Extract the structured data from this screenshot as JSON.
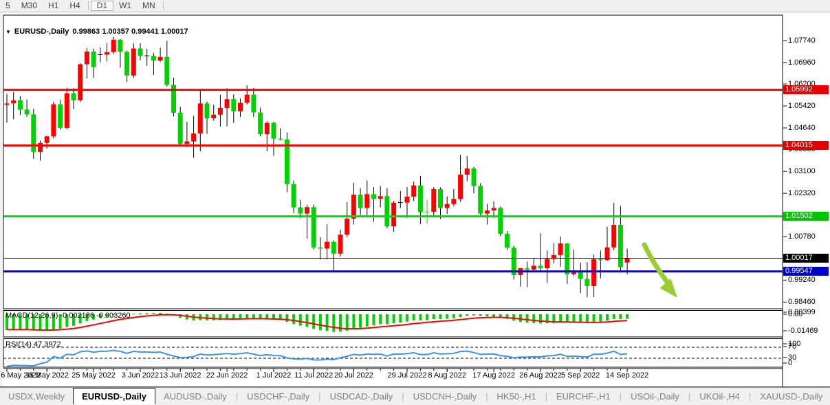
{
  "toolbar": {
    "timeframes": [
      "5",
      "M30",
      "H1",
      "H4",
      "D1",
      "W1",
      "MN"
    ],
    "active_timeframe": "D1"
  },
  "chart": {
    "symbol_period": "EURUSD-,Daily",
    "ohlc_text": "0.99863 1.00357 0.99441 1.00017",
    "dropdown_icon": "▼"
  },
  "price_axis": {
    "labels": [
      "1.07740",
      "1.06960",
      "1.06200",
      "1.05420",
      "1.04640",
      "1.03880",
      "1.03100",
      "1.02320",
      "1.00780",
      "0.99240",
      "0.98460"
    ],
    "badges": [
      {
        "text": "1.05992",
        "color": "#e80000"
      },
      {
        "text": "1.04015",
        "color": "#e80000"
      },
      {
        "text": "1.01502",
        "color": "#00c400"
      },
      {
        "text": "1.00017",
        "color": "#000000"
      },
      {
        "text": "0.99547",
        "color": "#0000cc"
      }
    ]
  },
  "indicators": {
    "macd_name": "MACD(12,26,9)",
    "macd_values": "-0.002186 -0.003260",
    "macd_axis_labels": [
      "0.00399",
      "0.00",
      "-0.01469"
    ],
    "rsi_name": "RSI(14)",
    "rsi_value": "47.3972",
    "rsi_axis_labels": [
      "100",
      "70",
      "30",
      "0"
    ]
  },
  "time_axis": {
    "labels": [
      {
        "idx": 0,
        "text": "6 May 2022"
      },
      {
        "idx": 6,
        "text": "16 May 2022"
      },
      {
        "idx": 13,
        "text": "25 May 2022"
      },
      {
        "idx": 20,
        "text": "3 Jun 2022"
      },
      {
        "idx": 26,
        "text": "13 Jun 2022"
      },
      {
        "idx": 33,
        "text": "22 Jun 2022"
      },
      {
        "idx": 40,
        "text": "1 Jul 2022"
      },
      {
        "idx": 46,
        "text": "11 Jul 2022"
      },
      {
        "idx": 52,
        "text": "20 Jul 2022"
      },
      {
        "idx": 60,
        "text": "29 Jul 2022"
      },
      {
        "idx": 66,
        "text": "8 Aug 2022"
      },
      {
        "idx": 73,
        "text": "17 Aug 2022"
      },
      {
        "idx": 80,
        "text": "26 Aug 2022"
      },
      {
        "idx": 86,
        "text": "5 Sep 2022"
      },
      {
        "idx": 93,
        "text": "14 Sep 2022"
      }
    ]
  },
  "tabs": {
    "items": [
      "USDX,Weekly",
      "EURUSD-,Daily",
      "AUDUSD-,Daily",
      "USDCHF-,Daily",
      "USDCAD-,Daily",
      "USDCNH-,Daily",
      "HK50-,H1",
      "EURCHF-,H1",
      "USOil-,Daily",
      "UKOil-,H4",
      "XAUUSD-,Daily"
    ],
    "active": "EURUSD-,Daily",
    "scroll_left_icon": "◂",
    "scroll_right_icon": "▸"
  },
  "colors": {
    "candle_up": "#ff0000",
    "candle_down": "#00d300",
    "doji": "#000000",
    "doji_lime": "#00e000",
    "macd_hist": "#00d300",
    "macd_signal": "#ff0000",
    "rsi_line": "#3a95e8",
    "level_red": "#ff0000",
    "level_green": "#00dd00",
    "level_blue": "#0000e0",
    "level_black": "#000000",
    "arrow": "#9acd32"
  },
  "chart_data": {
    "type": "candlestick",
    "title": "EURUSD-,Daily",
    "note": "red body = up day, green body = down day; last candle OHLC matches title 0.99863 1.00357 0.99441 1.00017",
    "dates": [
      "6 May",
      "9 May",
      "10 May",
      "11 May",
      "12 May",
      "13 May",
      "16 May",
      "17 May",
      "18 May",
      "19 May",
      "20 May",
      "23 May",
      "24 May",
      "25 May",
      "26 May",
      "27 May",
      "30 May",
      "31 May",
      "1 Jun",
      "2 Jun",
      "3 Jun",
      "6 Jun",
      "7 Jun",
      "8 Jun",
      "9 Jun",
      "10 Jun",
      "13 Jun",
      "14 Jun",
      "15 Jun",
      "16 Jun",
      "17 Jun",
      "20 Jun",
      "21 Jun",
      "22 Jun",
      "23 Jun",
      "24 Jun",
      "27 Jun",
      "28 Jun",
      "29 Jun",
      "30 Jun",
      "1 Jul",
      "4 Jul",
      "5 Jul",
      "6 Jul",
      "7 Jul",
      "8 Jul",
      "11 Jul",
      "12 Jul",
      "13 Jul",
      "14 Jul",
      "15 Jul",
      "18 Jul",
      "19 Jul",
      "20 Jul",
      "21 Jul",
      "22 Jul",
      "25 Jul",
      "26 Jul",
      "27 Jul",
      "28 Jul",
      "29 Jul",
      "1 Aug",
      "2 Aug",
      "3 Aug",
      "4 Aug",
      "5 Aug",
      "8 Aug",
      "9 Aug",
      "10 Aug",
      "11 Aug",
      "12 Aug",
      "15 Aug",
      "16 Aug",
      "17 Aug",
      "18 Aug",
      "19 Aug",
      "22 Aug",
      "23 Aug",
      "24 Aug",
      "25 Aug",
      "26 Aug",
      "29 Aug",
      "30 Aug",
      "31 Aug",
      "1 Sep",
      "2 Sep",
      "5 Sep",
      "6 Sep",
      "7 Sep",
      "8 Sep",
      "9 Sep",
      "12 Sep",
      "13 Sep",
      "14 Sep"
    ],
    "open": [
      1.0546,
      1.0551,
      1.0562,
      1.0529,
      1.0512,
      1.0379,
      1.0411,
      1.0434,
      1.0548,
      1.0464,
      1.0587,
      1.0562,
      1.069,
      1.0735,
      1.0722,
      1.0724,
      1.0733,
      1.0777,
      1.0734,
      1.065,
      1.0746,
      1.0719,
      1.072,
      1.0703,
      1.0716,
      1.0617,
      1.0518,
      1.0408,
      1.0416,
      1.0444,
      1.0551,
      1.0498,
      1.0511,
      1.0535,
      1.0566,
      1.0523,
      1.0553,
      1.0582,
      1.0519,
      1.0442,
      1.0482,
      1.0426,
      1.0423,
      1.0265,
      1.0182,
      1.016,
      1.0183,
      1.004,
      1.0036,
      1.006,
      1.0018,
      1.0085,
      1.0142,
      1.0227,
      1.018,
      1.0229,
      1.0213,
      1.0222,
      1.0115,
      1.0198,
      1.0199,
      1.022,
      1.026,
      1.0165,
      1.0166,
      1.0247,
      1.018,
      1.0194,
      1.0212,
      1.0298,
      1.032,
      1.0258,
      1.016,
      1.0171,
      1.018,
      1.0088,
      1.0039,
      0.9942,
      0.9966,
      0.9961,
      0.9975,
      0.9966,
      0.9999,
      1.0013,
      1.0054,
      0.9945,
      0.9952,
      0.9928,
      0.9903,
      0.9998,
      0.9995,
      1.004,
      1.012,
      0.99863
    ],
    "high": [
      1.0585,
      1.0592,
      1.0577,
      1.0565,
      1.0532,
      1.0419,
      1.0436,
      1.0557,
      1.0564,
      1.0607,
      1.0605,
      1.0693,
      1.0748,
      1.0745,
      1.075,
      1.0765,
      1.0787,
      1.0779,
      1.0739,
      1.0764,
      1.0765,
      1.0745,
      1.073,
      1.0749,
      1.0773,
      1.0642,
      1.0539,
      1.0485,
      1.0507,
      1.0601,
      1.0557,
      1.0546,
      1.0582,
      1.0605,
      1.0583,
      1.0568,
      1.0615,
      1.0606,
      1.0536,
      1.0488,
      1.0486,
      1.0463,
      1.0448,
      1.0277,
      1.0209,
      1.0191,
      1.0192,
      1.0076,
      1.0122,
      1.0065,
      1.0102,
      1.0201,
      1.0269,
      1.025,
      1.0278,
      1.0254,
      1.0258,
      1.025,
      1.0205,
      1.024,
      1.0254,
      1.0274,
      1.0294,
      1.0209,
      1.0254,
      1.0253,
      1.0221,
      1.0247,
      1.0369,
      1.0364,
      1.0325,
      1.0268,
      1.0195,
      1.0203,
      1.0185,
      1.0098,
      1.0046,
      0.9967,
      0.999,
      1.0003,
      1.009,
      1.0029,
      1.0055,
      1.0079,
      1.0055,
      1.0033,
      0.9986,
      0.9987,
      1.0014,
      1.0029,
      1.0113,
      1.0198,
      1.0187,
      1.00357
    ],
    "low": [
      1.0483,
      1.0495,
      1.0509,
      1.0503,
      1.0354,
      1.0348,
      1.0391,
      1.0426,
      1.0458,
      1.0459,
      1.0531,
      1.0556,
      1.064,
      1.0642,
      1.0697,
      1.07,
      1.0726,
      1.0678,
      1.0627,
      1.0642,
      1.0704,
      1.0684,
      1.0652,
      1.0699,
      1.0611,
      1.0505,
      1.0399,
      1.0396,
      1.0358,
      1.0381,
      1.0443,
      1.049,
      1.0469,
      1.0469,
      1.0482,
      1.0503,
      1.0547,
      1.0503,
      1.0434,
      1.0381,
      1.0365,
      1.042,
      1.0236,
      1.0162,
      1.0144,
      1.0071,
      1.0032,
      0.9998,
      0.9998,
      0.9952,
      1.0007,
      1.0076,
      1.0121,
      1.0155,
      1.0151,
      1.0131,
      1.0182,
      1.0108,
      1.0096,
      1.018,
      1.0145,
      1.0204,
      1.0123,
      1.0123,
      1.0151,
      1.0141,
      1.0159,
      1.0186,
      1.0202,
      1.0275,
      1.0232,
      1.0154,
      1.0121,
      1.0145,
      1.008,
      1.0031,
      0.9926,
      0.9901,
      0.9899,
      0.9956,
      0.9958,
      0.9914,
      0.9983,
      0.9972,
      0.991,
      0.9939,
      0.9878,
      0.9863,
      0.9864,
      0.993,
      0.9992,
      1.003,
      0.9955,
      0.99441
    ],
    "close": [
      1.0551,
      1.0562,
      1.0529,
      1.0512,
      1.0379,
      1.0411,
      1.0434,
      1.0548,
      1.0464,
      1.0587,
      1.0562,
      1.069,
      1.0735,
      1.068,
      1.0724,
      1.0733,
      1.0777,
      1.0734,
      1.065,
      1.0746,
      1.072,
      1.072,
      1.0703,
      1.0716,
      1.0617,
      1.0518,
      1.0408,
      1.0416,
      1.0444,
      1.0551,
      1.0498,
      1.0511,
      1.0535,
      1.0566,
      1.0523,
      1.0553,
      1.0582,
      1.0519,
      1.0442,
      1.0482,
      1.0426,
      1.0423,
      1.0265,
      1.0182,
      1.016,
      1.0183,
      1.004,
      1.0036,
      1.006,
      1.0018,
      1.0085,
      1.0142,
      1.0227,
      1.018,
      1.0229,
      1.0213,
      1.0222,
      1.0115,
      1.0199,
      1.0199,
      1.022,
      1.026,
      1.0165,
      1.0166,
      1.0247,
      1.018,
      1.0194,
      1.0212,
      1.0298,
      1.032,
      1.0258,
      1.016,
      1.0171,
      1.018,
      1.0088,
      1.0039,
      0.9942,
      0.9966,
      0.9961,
      0.9975,
      0.9966,
      0.9999,
      1.0013,
      1.0054,
      0.9945,
      0.9952,
      0.9928,
      0.9903,
      0.9998,
      0.9995,
      1.004,
      1.012,
      0.997,
      1.00017
    ],
    "doji_color_overrides": {
      "63": "#00e000"
    },
    "horizontal_levels": [
      {
        "value": 1.05992,
        "color": "#ff0000",
        "width": 3
      },
      {
        "value": 1.04015,
        "color": "#ff0000",
        "width": 3
      },
      {
        "value": 1.01502,
        "color": "#00dd00",
        "width": 3
      },
      {
        "value": 1.00017,
        "color": "#000000",
        "width": 1
      },
      {
        "value": 0.99547,
        "color": "#0000e0",
        "width": 3
      }
    ],
    "indicators": [
      {
        "name": "MACD",
        "params": "12,26,9",
        "current": [
          -0.002186,
          -0.00326
        ],
        "panel_range": [
          0.00399,
          -0.01469
        ]
      },
      {
        "name": "RSI",
        "params": "14",
        "current": 47.3972,
        "levels": [
          70,
          30
        ],
        "range": [
          0,
          100
        ]
      }
    ],
    "annotations": [
      {
        "type": "arrow",
        "direction": "down-right",
        "color": "#9acd32",
        "from_price": 1.0045,
        "to_price": 0.987,
        "after_last_candle": true
      }
    ],
    "ylim_main": [
      0.9816,
      1.0862
    ],
    "grid": false
  }
}
